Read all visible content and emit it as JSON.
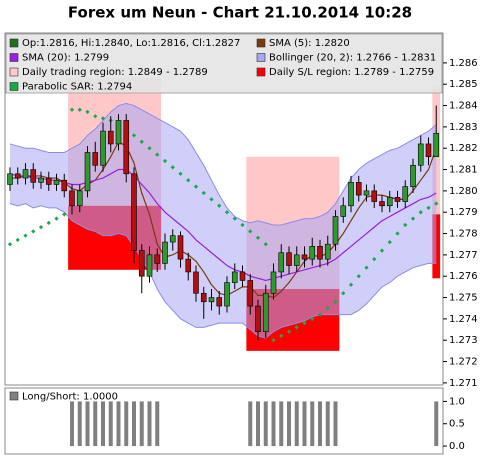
{
  "chart_data": [
    {
      "type": "candlestick",
      "title": "Forex um Neun - Chart 21.10.2014 10:28",
      "categories": [
        null,
        null,
        null,
        null,
        null,
        null,
        null,
        null,
        null,
        null,
        null,
        null,
        null,
        null,
        null,
        null,
        null,
        null,
        null,
        null,
        null,
        null,
        null,
        null,
        null,
        null,
        null,
        null,
        null,
        null,
        null,
        null,
        null,
        null,
        null,
        null,
        null,
        null,
        null,
        null,
        null,
        null,
        null,
        null,
        null,
        null,
        null,
        null,
        null,
        null,
        null,
        null,
        null,
        null,
        null,
        null
      ],
      "ylim": [
        1.2709,
        1.2874
      ],
      "yticks": [
        1.271,
        1.272,
        1.273,
        1.274,
        1.275,
        1.276,
        1.277,
        1.278,
        1.279,
        {
          "value": 1.28,
          "label": "1.280"
        },
        1.281,
        1.282,
        1.283,
        1.284,
        1.285,
        1.286
      ],
      "grid": false,
      "series": [
        {
          "name": "Op:1.2816, Hi:1.2840, Lo:1.2816, Cl:1.2827",
          "color": "#1f6f1f",
          "up_color": "#2e9a2e",
          "down_color": "#b01010",
          "open": [
            1.2803,
            1.2808,
            1.2806,
            1.281,
            1.2804,
            1.2806,
            1.2803,
            1.2805,
            1.28,
            1.2793,
            1.28,
            1.2818,
            1.2812,
            1.2828,
            1.2822,
            1.2833,
            1.2808,
            1.2772,
            1.276,
            1.277,
            1.2766,
            1.2776,
            1.2779,
            1.2768,
            1.2762,
            1.2752,
            1.2748,
            1.275,
            1.2746,
            1.2757,
            1.2762,
            1.2758,
            1.2746,
            1.2734,
            1.2752,
            1.2762,
            1.2771,
            1.2765,
            1.277,
            1.2768,
            1.2774,
            1.2768,
            1.2775,
            1.2788,
            1.2793,
            1.2804,
            1.2798,
            1.28,
            1.2795,
            1.2793,
            1.2797,
            1.2795,
            1.2802,
            1.2812,
            1.2822,
            1.2816
          ],
          "high": [
            1.2811,
            1.2811,
            1.2813,
            1.2813,
            1.2809,
            1.2809,
            1.2808,
            1.2808,
            1.2803,
            1.2803,
            1.2821,
            1.2823,
            1.2832,
            1.2835,
            1.2836,
            1.2836,
            1.2811,
            1.2775,
            1.2774,
            1.2773,
            1.278,
            1.2782,
            1.2781,
            1.2771,
            1.2765,
            1.2755,
            1.2754,
            1.2753,
            1.276,
            1.2766,
            1.2765,
            1.2761,
            1.2749,
            1.2756,
            1.2766,
            1.2775,
            1.2774,
            1.2774,
            1.2774,
            1.2778,
            1.2777,
            1.2779,
            1.2791,
            1.2797,
            1.2807,
            1.2807,
            1.2803,
            1.2803,
            1.2798,
            1.28,
            1.28,
            1.2805,
            1.2815,
            1.2826,
            1.2825,
            1.284
          ],
          "low": [
            1.28,
            1.2803,
            1.2803,
            1.2801,
            1.2801,
            1.28,
            1.28,
            1.2797,
            1.2789,
            1.279,
            1.2797,
            1.2809,
            1.2809,
            1.2818,
            1.2819,
            1.2804,
            1.2766,
            1.2752,
            1.2757,
            1.2762,
            1.2763,
            1.2772,
            1.2764,
            1.2758,
            1.2748,
            1.274,
            1.2744,
            1.2742,
            1.2743,
            1.2754,
            1.2755,
            1.2742,
            1.273,
            1.2731,
            1.2749,
            1.2759,
            1.2761,
            1.2762,
            1.2764,
            1.2765,
            1.2764,
            1.2765,
            1.2772,
            1.2785,
            1.279,
            1.2795,
            1.2795,
            1.2792,
            1.279,
            1.279,
            1.2792,
            1.2792,
            1.2799,
            1.2809,
            1.2812,
            1.2816
          ],
          "close": [
            1.2808,
            1.2806,
            1.281,
            1.2804,
            1.2806,
            1.2803,
            1.2805,
            1.28,
            1.2793,
            1.28,
            1.2818,
            1.2812,
            1.2828,
            1.2822,
            1.2833,
            1.2808,
            1.2772,
            1.276,
            1.277,
            1.2766,
            1.2776,
            1.2779,
            1.2768,
            1.2762,
            1.2752,
            1.2748,
            1.275,
            1.2746,
            1.2757,
            1.2762,
            1.2758,
            1.2746,
            1.2734,
            1.2752,
            1.2762,
            1.2771,
            1.2765,
            1.277,
            1.2768,
            1.2774,
            1.2768,
            1.2775,
            1.2788,
            1.2793,
            1.2804,
            1.2798,
            1.28,
            1.2795,
            1.2793,
            1.2797,
            1.2795,
            1.2802,
            1.2812,
            1.2822,
            1.2816,
            1.2827
          ]
        },
        {
          "name": "SMA (5): 1.2820",
          "color": "#7a3a10",
          "values": [
            1.2806,
            1.2806,
            1.2807,
            1.2807,
            1.2807,
            1.2806,
            1.2806,
            1.2804,
            1.2801,
            1.28,
            1.2803,
            1.2805,
            1.281,
            1.2816,
            1.2823,
            1.2821,
            1.2813,
            1.2799,
            1.2789,
            1.2775,
            1.2769,
            1.277,
            1.2772,
            1.277,
            1.2767,
            1.2762,
            1.2756,
            1.2752,
            1.2751,
            1.2753,
            1.2755,
            1.2755,
            1.2751,
            1.2751,
            1.275,
            1.2753,
            1.2757,
            1.2762,
            1.2767,
            1.277,
            1.2769,
            1.2771,
            1.2775,
            1.278,
            1.2786,
            1.2792,
            1.2797,
            1.2798,
            1.2798,
            1.2797,
            1.2796,
            1.2796,
            1.28,
            1.2805,
            1.281,
            1.282
          ]
        },
        {
          "name": "SMA (20): 1.2799",
          "color": "#9a1ee0",
          "values": [
            1.2808,
            1.2807,
            1.2807,
            1.2806,
            1.2806,
            1.2805,
            1.2805,
            1.2804,
            1.2803,
            1.2803,
            1.2804,
            1.2805,
            1.2806,
            1.2808,
            1.281,
            1.281,
            1.2807,
            1.2803,
            1.2799,
            1.2794,
            1.279,
            1.2787,
            1.2784,
            1.2781,
            1.2777,
            1.2774,
            1.2771,
            1.2768,
            1.2765,
            1.2763,
            1.2762,
            1.276,
            1.2759,
            1.2758,
            1.2759,
            1.276,
            1.2761,
            1.2762,
            1.2763,
            1.2764,
            1.2765,
            1.2766,
            1.2768,
            1.2771,
            1.2774,
            1.2777,
            1.278,
            1.2783,
            1.2786,
            1.2788,
            1.279,
            1.2792,
            1.2794,
            1.2796,
            1.2797,
            1.2799
          ]
        },
        {
          "name": "Bollinger (20, 2): 1.2766 - 1.2831",
          "color": "#a8a8f4",
          "upper": [
            1.2822,
            1.2821,
            1.282,
            1.282,
            1.2819,
            1.2818,
            1.2818,
            1.2818,
            1.282,
            1.2822,
            1.2826,
            1.2829,
            1.2833,
            1.2837,
            1.284,
            1.2841,
            1.284,
            1.2838,
            1.2836,
            1.2834,
            1.2832,
            1.283,
            1.2828,
            1.2824,
            1.2818,
            1.2812,
            1.2805,
            1.2798,
            1.2792,
            1.2788,
            1.2786,
            1.2785,
            1.2786,
            1.2785,
            1.2784,
            1.2784,
            1.2785,
            1.2786,
            1.2787,
            1.2787,
            1.2788,
            1.279,
            1.2794,
            1.28,
            1.2806,
            1.281,
            1.2813,
            1.2815,
            1.2817,
            1.2819,
            1.282,
            1.2822,
            1.2824,
            1.2826,
            1.2828,
            1.2831
          ],
          "lower": [
            1.2794,
            1.2793,
            1.2794,
            1.2792,
            1.2793,
            1.2792,
            1.2792,
            1.279,
            1.2786,
            1.2784,
            1.2782,
            1.2781,
            1.2779,
            1.2779,
            1.278,
            1.2779,
            1.2774,
            1.2768,
            1.2762,
            1.2754,
            1.2748,
            1.2744,
            1.274,
            1.2738,
            1.2736,
            1.2736,
            1.2737,
            1.2738,
            1.2738,
            1.2738,
            1.2738,
            1.2735,
            1.2732,
            1.2731,
            1.2734,
            1.2736,
            1.2737,
            1.2738,
            1.2739,
            1.2741,
            1.2742,
            1.2742,
            1.2742,
            1.2742,
            1.2742,
            1.2744,
            1.2747,
            1.2751,
            1.2755,
            1.2757,
            1.276,
            1.2762,
            1.2764,
            1.2765,
            1.2766,
            1.2766
          ]
        },
        {
          "name": "Daily trading region: 1.2849 - 1.2789",
          "color": "#ffc8c8",
          "regions": [
            {
              "start": 8,
              "end": 19,
              "high": 1.2853,
              "low": 1.2793
            },
            {
              "start": 31,
              "end": 42,
              "high": 1.2816,
              "low": 1.2754
            },
            {
              "start": 55,
              "end": 55,
              "high": 1.2849,
              "low": 1.2789
            }
          ]
        },
        {
          "name": "Daily S/L region: 1.2789 - 1.2759",
          "color": "#ff0000",
          "regions": [
            {
              "start": 8,
              "end": 19,
              "high": 1.2793,
              "low": 1.2763
            },
            {
              "start": 31,
              "end": 42,
              "high": 1.2754,
              "low": 1.2725
            },
            {
              "start": 55,
              "end": 55,
              "high": 1.2789,
              "low": 1.2759
            }
          ]
        },
        {
          "name": "Parabolic SAR: 1.2794",
          "color": "#1aa84a",
          "values": [
            1.2775,
            1.2777,
            1.2779,
            1.2781,
            1.2783,
            1.2785,
            1.2787,
            1.2789,
            1.2838,
            1.2838,
            1.2837,
            1.2835,
            1.2834,
            1.2833,
            1.2831,
            1.2829,
            1.2826,
            1.2823,
            1.282,
            1.2817,
            1.2814,
            1.2811,
            1.2808,
            1.2805,
            1.2802,
            1.2799,
            1.2796,
            1.2793,
            1.279,
            1.2787,
            1.2784,
            1.2781,
            1.2778,
            1.2775,
            1.273,
            1.2732,
            1.2734,
            1.2736,
            1.2738,
            1.274,
            1.2742,
            1.2745,
            1.2748,
            1.2752,
            1.2756,
            1.276,
            1.2764,
            1.2768,
            1.2772,
            1.2776,
            1.278,
            1.2784,
            1.2787,
            1.279,
            1.2792,
            1.2794
          ]
        }
      ]
    },
    {
      "type": "bar",
      "name": "Long/Short: 1.0000",
      "color": "#808080",
      "values": [
        0,
        0,
        0,
        0,
        0,
        0,
        0,
        0,
        1,
        1,
        1,
        1,
        1,
        1,
        1,
        1,
        1,
        1,
        1,
        1,
        0,
        0,
        0,
        0,
        0,
        0,
        0,
        0,
        0,
        0,
        0,
        1,
        1,
        1,
        1,
        1,
        1,
        1,
        1,
        1,
        1,
        1,
        1,
        0,
        0,
        0,
        0,
        0,
        0,
        0,
        0,
        0,
        0,
        0,
        0,
        1
      ],
      "ylim": [
        -0.2,
        1.3
      ],
      "yticks": [
        {
          "value": 0,
          "label": "0.0"
        },
        {
          "value": 0.5,
          "label": "0.5"
        },
        {
          "value": 1,
          "label": "1.0"
        }
      ]
    }
  ]
}
